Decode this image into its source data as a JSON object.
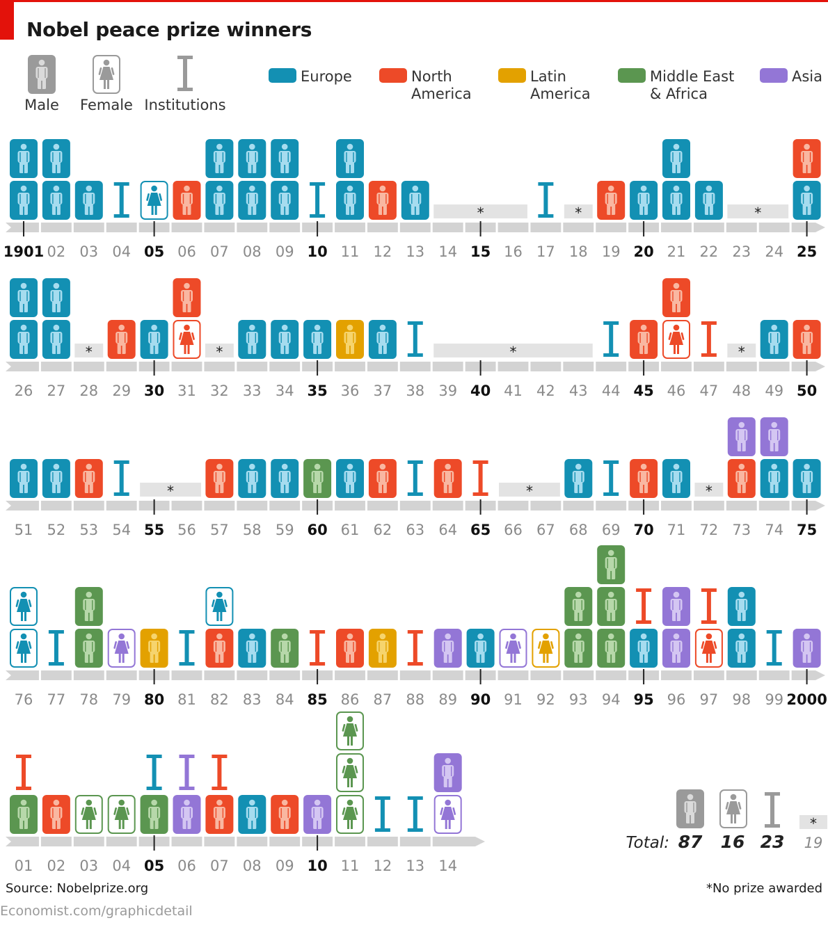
{
  "title": "Nobel peace prize winners",
  "source": "Source: Nobelprize.org",
  "site": "Economist.com/graphicdetail",
  "note": "*No prize awarded",
  "chart_data": {
    "type": "pictogram",
    "title": "Nobel peace prize winners",
    "legend_types": [
      {
        "key": "M",
        "label": "Male"
      },
      {
        "key": "F",
        "label": "Female"
      },
      {
        "key": "I",
        "label": "Institutions"
      }
    ],
    "legend_regions": [
      {
        "key": "E",
        "lines": [
          "Europe"
        ],
        "color": "#1390b3"
      },
      {
        "key": "N",
        "lines": [
          "North",
          "America"
        ],
        "color": "#ed4a28"
      },
      {
        "key": "L",
        "lines": [
          "Latin",
          "America"
        ],
        "color": "#e3a100"
      },
      {
        "key": "A",
        "lines": [
          "Middle East",
          "& Africa"
        ],
        "color": "#5b9650"
      },
      {
        "key": "S",
        "lines": [
          "Asia"
        ],
        "color": "#9376d6"
      }
    ],
    "laureate_codes": "Each code = type (M male, F female, I institution) + region (E Europe, N North America, L Latin America, A Middle East & Africa, S Asia), listed bottom to top; * = no prize awarded",
    "years": [
      {
        "year": 1901,
        "label": "1901",
        "w": [
          "ME",
          "ME"
        ]
      },
      {
        "year": 1902,
        "label": "02",
        "w": [
          "ME",
          "ME"
        ]
      },
      {
        "year": 1903,
        "label": "03",
        "w": [
          "ME"
        ]
      },
      {
        "year": 1904,
        "label": "04",
        "w": [
          "IE"
        ]
      },
      {
        "year": 1905,
        "label": "05",
        "w": [
          "FE"
        ]
      },
      {
        "year": 1906,
        "label": "06",
        "w": [
          "MN"
        ]
      },
      {
        "year": 1907,
        "label": "07",
        "w": [
          "ME",
          "ME"
        ]
      },
      {
        "year": 1908,
        "label": "08",
        "w": [
          "ME",
          "ME"
        ]
      },
      {
        "year": 1909,
        "label": "09",
        "w": [
          "ME",
          "ME"
        ]
      },
      {
        "year": 1910,
        "label": "10",
        "w": [
          "IE"
        ]
      },
      {
        "year": 1911,
        "label": "11",
        "w": [
          "ME",
          "ME"
        ]
      },
      {
        "year": 1912,
        "label": "12",
        "w": [
          "MN"
        ]
      },
      {
        "year": 1913,
        "label": "13",
        "w": [
          "ME"
        ]
      },
      {
        "year": 1914,
        "label": "14",
        "w": []
      },
      {
        "year": 1915,
        "label": "15",
        "w": []
      },
      {
        "year": 1916,
        "label": "16",
        "w": []
      },
      {
        "year": 1917,
        "label": "17",
        "w": [
          "IE"
        ]
      },
      {
        "year": 1918,
        "label": "18",
        "w": []
      },
      {
        "year": 1919,
        "label": "19",
        "w": [
          "MN"
        ]
      },
      {
        "year": 1920,
        "label": "20",
        "w": [
          "ME"
        ]
      },
      {
        "year": 1921,
        "label": "21",
        "w": [
          "ME",
          "ME"
        ]
      },
      {
        "year": 1922,
        "label": "22",
        "w": [
          "ME"
        ]
      },
      {
        "year": 1923,
        "label": "23",
        "w": []
      },
      {
        "year": 1924,
        "label": "24",
        "w": []
      },
      {
        "year": 1925,
        "label": "25",
        "w": [
          "ME",
          "MN"
        ]
      },
      {
        "year": 1926,
        "label": "26",
        "w": [
          "ME",
          "ME"
        ]
      },
      {
        "year": 1927,
        "label": "27",
        "w": [
          "ME",
          "ME"
        ]
      },
      {
        "year": 1928,
        "label": "28",
        "w": []
      },
      {
        "year": 1929,
        "label": "29",
        "w": [
          "MN"
        ]
      },
      {
        "year": 1930,
        "label": "30",
        "w": [
          "ME"
        ]
      },
      {
        "year": 1931,
        "label": "31",
        "w": [
          "FN",
          "MN"
        ]
      },
      {
        "year": 1932,
        "label": "32",
        "w": []
      },
      {
        "year": 1933,
        "label": "33",
        "w": [
          "ME"
        ]
      },
      {
        "year": 1934,
        "label": "34",
        "w": [
          "ME"
        ]
      },
      {
        "year": 1935,
        "label": "35",
        "w": [
          "ME"
        ]
      },
      {
        "year": 1936,
        "label": "36",
        "w": [
          "ML"
        ]
      },
      {
        "year": 1937,
        "label": "37",
        "w": [
          "ME"
        ]
      },
      {
        "year": 1938,
        "label": "38",
        "w": [
          "IE"
        ]
      },
      {
        "year": 1939,
        "label": "39",
        "w": []
      },
      {
        "year": 1940,
        "label": "40",
        "w": []
      },
      {
        "year": 1941,
        "label": "41",
        "w": []
      },
      {
        "year": 1942,
        "label": "42",
        "w": []
      },
      {
        "year": 1943,
        "label": "43",
        "w": []
      },
      {
        "year": 1944,
        "label": "44",
        "w": [
          "IE"
        ]
      },
      {
        "year": 1945,
        "label": "45",
        "w": [
          "MN"
        ]
      },
      {
        "year": 1946,
        "label": "46",
        "w": [
          "FN",
          "MN"
        ]
      },
      {
        "year": 1947,
        "label": "47",
        "w": [
          "IN"
        ]
      },
      {
        "year": 1948,
        "label": "48",
        "w": []
      },
      {
        "year": 1949,
        "label": "49",
        "w": [
          "ME"
        ]
      },
      {
        "year": 1950,
        "label": "50",
        "w": [
          "MN"
        ]
      },
      {
        "year": 1951,
        "label": "51",
        "w": [
          "ME"
        ]
      },
      {
        "year": 1952,
        "label": "52",
        "w": [
          "ME"
        ]
      },
      {
        "year": 1953,
        "label": "53",
        "w": [
          "MN"
        ]
      },
      {
        "year": 1954,
        "label": "54",
        "w": [
          "IE"
        ]
      },
      {
        "year": 1955,
        "label": "55",
        "w": []
      },
      {
        "year": 1956,
        "label": "56",
        "w": []
      },
      {
        "year": 1957,
        "label": "57",
        "w": [
          "MN"
        ]
      },
      {
        "year": 1958,
        "label": "58",
        "w": [
          "ME"
        ]
      },
      {
        "year": 1959,
        "label": "59",
        "w": [
          "ME"
        ]
      },
      {
        "year": 1960,
        "label": "60",
        "w": [
          "MA"
        ]
      },
      {
        "year": 1961,
        "label": "61",
        "w": [
          "ME"
        ]
      },
      {
        "year": 1962,
        "label": "62",
        "w": [
          "MN"
        ]
      },
      {
        "year": 1963,
        "label": "63",
        "w": [
          "IE"
        ]
      },
      {
        "year": 1964,
        "label": "64",
        "w": [
          "MN"
        ]
      },
      {
        "year": 1965,
        "label": "65",
        "w": [
          "IN"
        ]
      },
      {
        "year": 1966,
        "label": "66",
        "w": []
      },
      {
        "year": 1967,
        "label": "67",
        "w": []
      },
      {
        "year": 1968,
        "label": "68",
        "w": [
          "ME"
        ]
      },
      {
        "year": 1969,
        "label": "69",
        "w": [
          "IE"
        ]
      },
      {
        "year": 1970,
        "label": "70",
        "w": [
          "MN"
        ]
      },
      {
        "year": 1971,
        "label": "71",
        "w": [
          "ME"
        ]
      },
      {
        "year": 1972,
        "label": "72",
        "w": []
      },
      {
        "year": 1973,
        "label": "73",
        "w": [
          "MN",
          "MS"
        ]
      },
      {
        "year": 1974,
        "label": "74",
        "w": [
          "ME",
          "MS"
        ]
      },
      {
        "year": 1975,
        "label": "75",
        "w": [
          "ME"
        ]
      },
      {
        "year": 1976,
        "label": "76",
        "w": [
          "FE",
          "FE"
        ]
      },
      {
        "year": 1977,
        "label": "77",
        "w": [
          "IE"
        ]
      },
      {
        "year": 1978,
        "label": "78",
        "w": [
          "MA",
          "MA"
        ]
      },
      {
        "year": 1979,
        "label": "79",
        "w": [
          "FS"
        ]
      },
      {
        "year": 1980,
        "label": "80",
        "w": [
          "ML"
        ]
      },
      {
        "year": 1981,
        "label": "81",
        "w": [
          "IE"
        ]
      },
      {
        "year": 1982,
        "label": "82",
        "w": [
          "MN",
          "FE"
        ]
      },
      {
        "year": 1983,
        "label": "83",
        "w": [
          "ME"
        ]
      },
      {
        "year": 1984,
        "label": "84",
        "w": [
          "MA"
        ]
      },
      {
        "year": 1985,
        "label": "85",
        "w": [
          "IN"
        ]
      },
      {
        "year": 1986,
        "label": "86",
        "w": [
          "MN"
        ]
      },
      {
        "year": 1987,
        "label": "87",
        "w": [
          "ML"
        ]
      },
      {
        "year": 1988,
        "label": "88",
        "w": [
          "IN"
        ]
      },
      {
        "year": 1989,
        "label": "89",
        "w": [
          "MS"
        ]
      },
      {
        "year": 1990,
        "label": "90",
        "w": [
          "ME"
        ]
      },
      {
        "year": 1991,
        "label": "91",
        "w": [
          "FS"
        ]
      },
      {
        "year": 1992,
        "label": "92",
        "w": [
          "FL"
        ]
      },
      {
        "year": 1993,
        "label": "93",
        "w": [
          "MA",
          "MA"
        ]
      },
      {
        "year": 1994,
        "label": "94",
        "w": [
          "MA",
          "MA",
          "MA"
        ]
      },
      {
        "year": 1995,
        "label": "95",
        "w": [
          "ME",
          "IN"
        ]
      },
      {
        "year": 1996,
        "label": "96",
        "w": [
          "MS",
          "MS"
        ]
      },
      {
        "year": 1997,
        "label": "97",
        "w": [
          "FN",
          "IN"
        ]
      },
      {
        "year": 1998,
        "label": "98",
        "w": [
          "ME",
          "ME"
        ]
      },
      {
        "year": 1999,
        "label": "99",
        "w": [
          "IE"
        ]
      },
      {
        "year": 2000,
        "label": "2000",
        "w": [
          "MS"
        ]
      },
      {
        "year": 2001,
        "label": "01",
        "w": [
          "MA",
          "IN"
        ]
      },
      {
        "year": 2002,
        "label": "02",
        "w": [
          "MN"
        ]
      },
      {
        "year": 2003,
        "label": "03",
        "w": [
          "FA"
        ]
      },
      {
        "year": 2004,
        "label": "04",
        "w": [
          "FA"
        ]
      },
      {
        "year": 2005,
        "label": "05",
        "w": [
          "MA",
          "IE"
        ]
      },
      {
        "year": 2006,
        "label": "06",
        "w": [
          "MS",
          "IS"
        ]
      },
      {
        "year": 2007,
        "label": "07",
        "w": [
          "MN",
          "IN"
        ]
      },
      {
        "year": 2008,
        "label": "08",
        "w": [
          "ME"
        ]
      },
      {
        "year": 2009,
        "label": "09",
        "w": [
          "MN"
        ]
      },
      {
        "year": 2010,
        "label": "10",
        "w": [
          "MS"
        ]
      },
      {
        "year": 2011,
        "label": "11",
        "w": [
          "FA",
          "FA",
          "FA"
        ]
      },
      {
        "year": 2012,
        "label": "12",
        "w": [
          "IE"
        ]
      },
      {
        "year": 2013,
        "label": "13",
        "w": [
          "IE"
        ]
      },
      {
        "year": 2014,
        "label": "14",
        "w": [
          "FS",
          "MS"
        ]
      }
    ],
    "totals": {
      "label": "Total:",
      "male": "87",
      "female": "16",
      "institutions": "23",
      "no_prize": "19"
    }
  }
}
